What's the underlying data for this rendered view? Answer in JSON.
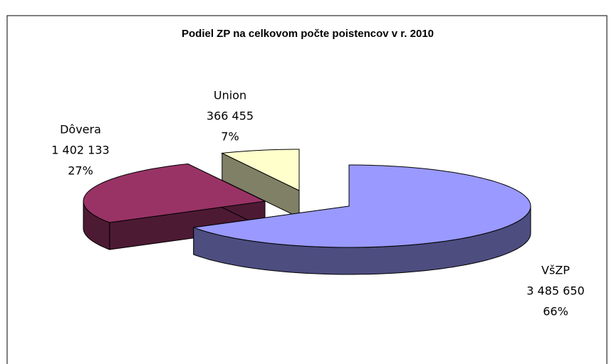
{
  "chart_data": {
    "type": "pie3d",
    "title": "Podiel ZP na celkovom počte poistencov v r. 2010",
    "categories": [
      "VšZP",
      "Dôvera",
      "Union"
    ],
    "values": [
      3485650,
      1402133,
      366455
    ],
    "value_labels": [
      "3 485 650",
      "1 402 133",
      "366 455"
    ],
    "percents": [
      66,
      27,
      7
    ],
    "percent_labels": [
      "66%",
      "27%",
      "7%"
    ],
    "colors": [
      "#9999ff",
      "#993366",
      "#ffffcc"
    ]
  }
}
